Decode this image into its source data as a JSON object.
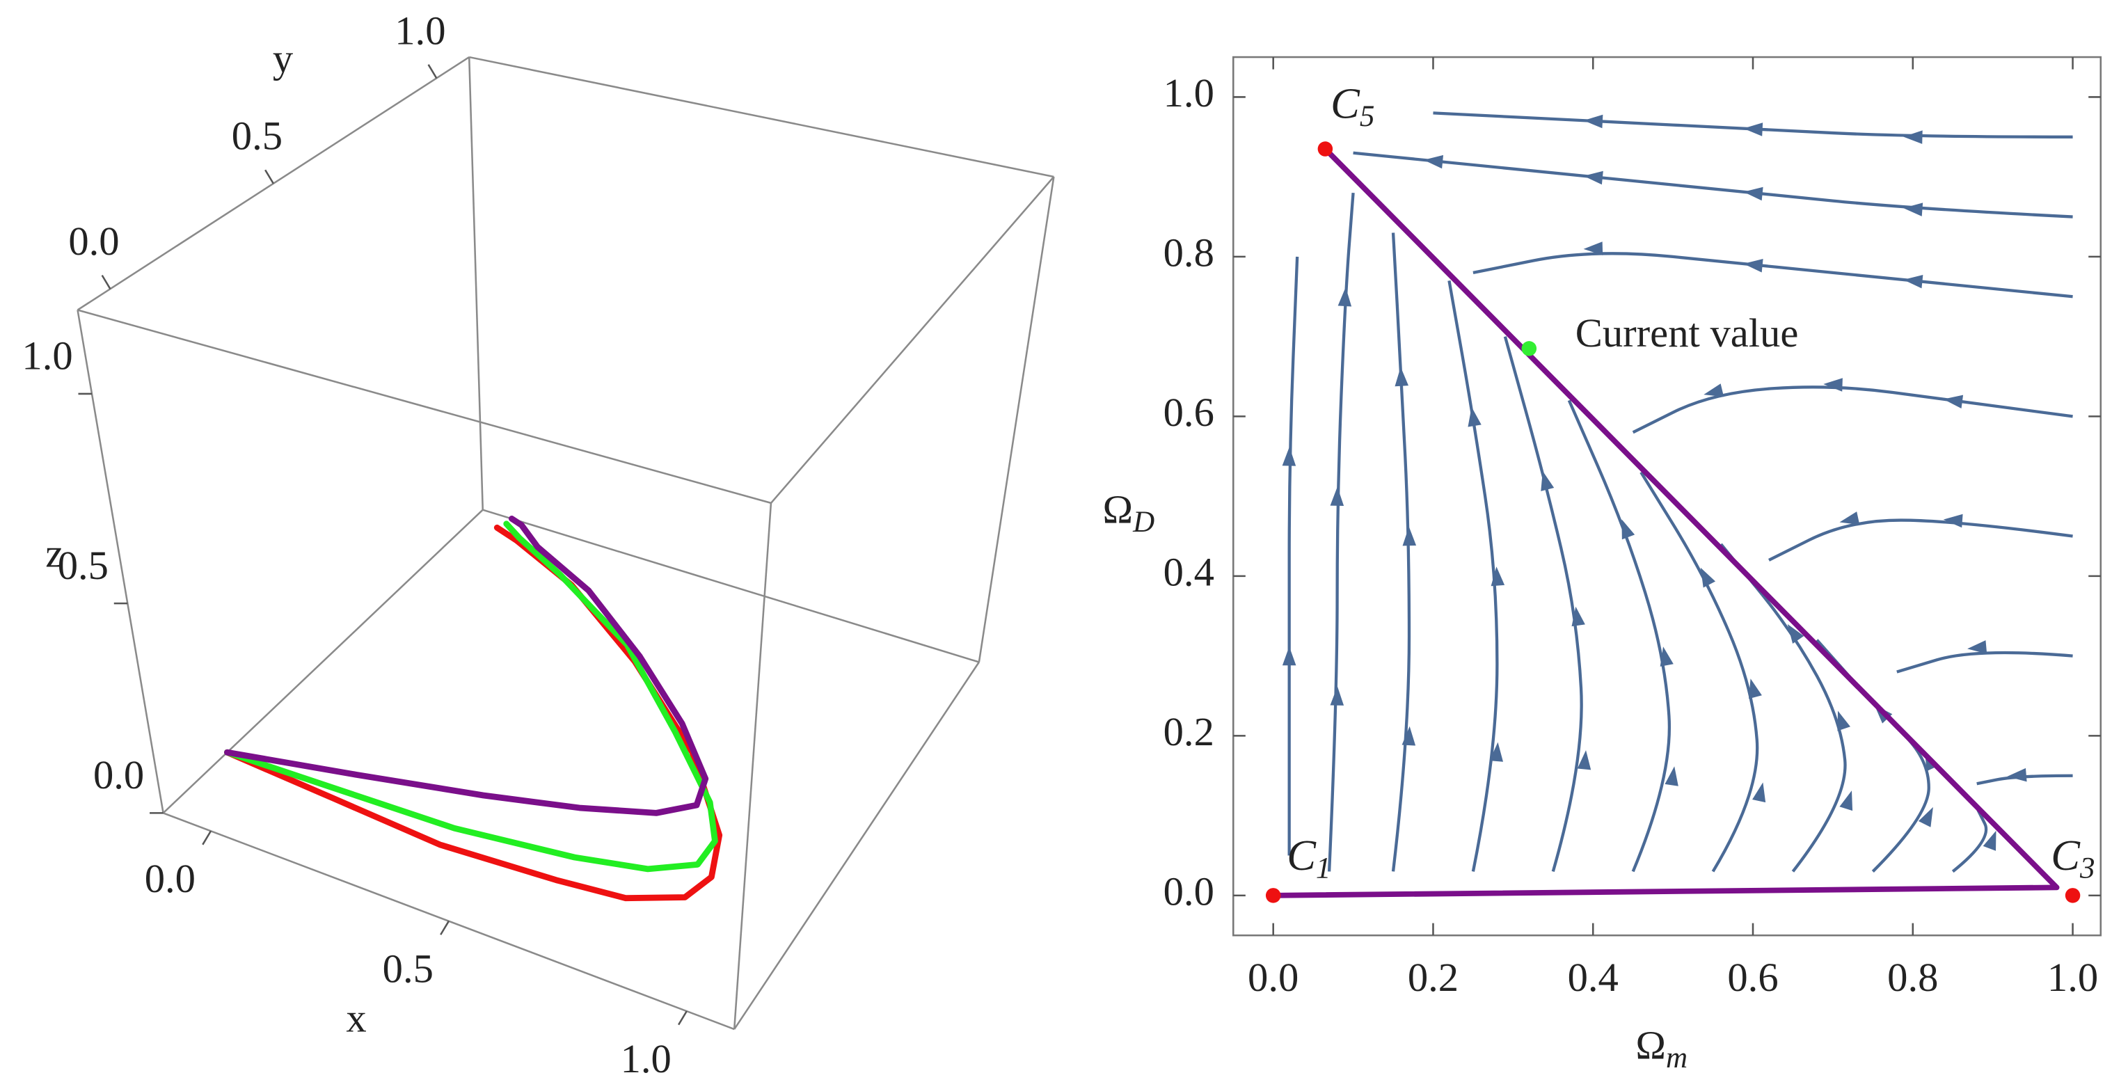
{
  "chart_data": [
    {
      "type": "line3d",
      "x_label": "x",
      "y_label": "y",
      "z_label": "z",
      "xlim": [
        -0.1,
        1.1
      ],
      "ylim": [
        -0.1,
        1.1
      ],
      "zlim": [
        0,
        1.2
      ],
      "xticks": [
        {
          "value": 0,
          "label": "0.0"
        },
        {
          "value": 0.5,
          "label": "0.5"
        },
        {
          "value": 1,
          "label": "1.0"
        }
      ],
      "yticks": [
        {
          "value": 0,
          "label": "0.0"
        },
        {
          "value": 0.5,
          "label": "0.5"
        },
        {
          "value": 1,
          "label": "1.0"
        }
      ],
      "zticks": [
        {
          "value": 0,
          "label": "0.0"
        },
        {
          "value": 0.5,
          "label": "0.5"
        },
        {
          "value": 1,
          "label": "1.0"
        }
      ],
      "series": [
        {
          "color": "#ee1111",
          "x": [
            -0.1,
            0.14,
            0.38,
            0.62,
            0.76,
            0.86,
            0.88,
            0.84,
            0.68,
            0.44,
            0.2,
            0.02,
            -0.04
          ],
          "y": [
            0.14,
            0.12,
            0.1,
            0.12,
            0.14,
            0.2,
            0.28,
            0.4,
            0.6,
            0.8,
            0.96,
            1.04,
            1.06
          ],
          "z": [
            0,
            0,
            0,
            0,
            0,
            0,
            0,
            0,
            0,
            0,
            0,
            0,
            0
          ]
        },
        {
          "color": "#22ee22",
          "x": [
            -0.1,
            0.14,
            0.38,
            0.62,
            0.76,
            0.84,
            0.84,
            0.78,
            0.62,
            0.4,
            0.16,
            0.02,
            -0.03
          ],
          "y": [
            0.14,
            0.15,
            0.16,
            0.2,
            0.24,
            0.3,
            0.38,
            0.48,
            0.64,
            0.84,
            0.98,
            1.05,
            1.08
          ],
          "z": [
            0,
            0,
            0,
            0,
            0,
            0,
            0,
            0,
            0,
            0,
            0,
            0,
            0
          ]
        },
        {
          "color": "#7a0f8a",
          "x": [
            -0.1,
            0.14,
            0.38,
            0.56,
            0.7,
            0.76,
            0.74,
            0.62,
            0.44,
            0.24,
            0.07,
            0,
            -0.03
          ],
          "y": [
            0.14,
            0.21,
            0.28,
            0.34,
            0.4,
            0.46,
            0.54,
            0.67,
            0.82,
            0.96,
            1.04,
            1.09,
            1.1
          ],
          "z": [
            0,
            0,
            0,
            0,
            0,
            0,
            0,
            0,
            0,
            0,
            0,
            0,
            0
          ]
        }
      ]
    },
    {
      "type": "streamplot",
      "x_label": {
        "main": "Ω",
        "sub": "m"
      },
      "y_label": {
        "main": "Ω",
        "sub": "D"
      },
      "xlim": [
        -0.05,
        1.035
      ],
      "ylim": [
        -0.05,
        1.05
      ],
      "xticks": [
        {
          "value": 0,
          "label": "0.0"
        },
        {
          "value": 0.2,
          "label": "0.2"
        },
        {
          "value": 0.4,
          "label": "0.4"
        },
        {
          "value": 0.6,
          "label": "0.6"
        },
        {
          "value": 0.8,
          "label": "0.8"
        },
        {
          "value": 1,
          "label": "1.0"
        }
      ],
      "yticks": [
        {
          "value": 0,
          "label": "0.0"
        },
        {
          "value": 0.2,
          "label": "0.2"
        },
        {
          "value": 0.4,
          "label": "0.4"
        },
        {
          "value": 0.6,
          "label": "0.6"
        },
        {
          "value": 0.8,
          "label": "0.8"
        },
        {
          "value": 1,
          "label": "1.0"
        }
      ],
      "stream_color": "#4a6a96",
      "streamlines": [
        {
          "x": [
            0.02,
            0.02,
            0.02,
            0.03
          ],
          "y": [
            0.05,
            0.3,
            0.55,
            0.8
          ]
        },
        {
          "x": [
            0.07,
            0.08,
            0.08,
            0.09,
            0.1
          ],
          "y": [
            0.03,
            0.25,
            0.5,
            0.75,
            0.88
          ]
        },
        {
          "x": [
            0.15,
            0.17,
            0.17,
            0.16,
            0.15
          ],
          "y": [
            0.03,
            0.2,
            0.45,
            0.65,
            0.83
          ]
        },
        {
          "x": [
            0.25,
            0.28,
            0.28,
            0.25,
            0.22
          ],
          "y": [
            0.03,
            0.18,
            0.4,
            0.6,
            0.77
          ]
        },
        {
          "x": [
            0.35,
            0.39,
            0.38,
            0.34,
            0.29
          ],
          "y": [
            0.03,
            0.17,
            0.35,
            0.52,
            0.7
          ]
        },
        {
          "x": [
            0.45,
            0.5,
            0.49,
            0.44,
            0.37
          ],
          "y": [
            0.03,
            0.15,
            0.3,
            0.46,
            0.62
          ]
        },
        {
          "x": [
            0.55,
            0.61,
            0.6,
            0.54,
            0.46
          ],
          "y": [
            0.03,
            0.13,
            0.26,
            0.4,
            0.53
          ]
        },
        {
          "x": [
            0.65,
            0.72,
            0.71,
            0.65,
            0.56
          ],
          "y": [
            0.03,
            0.12,
            0.22,
            0.33,
            0.44
          ]
        },
        {
          "x": [
            0.75,
            0.82,
            0.82,
            0.76,
            0.68
          ],
          "y": [
            0.03,
            0.1,
            0.17,
            0.23,
            0.32
          ]
        },
        {
          "x": [
            0.85,
            0.9,
            0.88
          ],
          "y": [
            0.03,
            0.07,
            0.11
          ]
        },
        {
          "x": [
            1,
            0.8,
            0.6,
            0.4,
            0.2
          ],
          "y": [
            0.95,
            0.95,
            0.96,
            0.97,
            0.98
          ]
        },
        {
          "x": [
            1,
            0.8,
            0.6,
            0.4,
            0.2,
            0.1
          ],
          "y": [
            0.85,
            0.86,
            0.88,
            0.9,
            0.92,
            0.93
          ]
        },
        {
          "x": [
            1,
            0.8,
            0.6,
            0.4,
            0.25
          ],
          "y": [
            0.75,
            0.77,
            0.79,
            0.81,
            0.78
          ]
        },
        {
          "x": [
            1,
            0.85,
            0.7,
            0.55,
            0.45
          ],
          "y": [
            0.6,
            0.62,
            0.64,
            0.63,
            0.58
          ]
        },
        {
          "x": [
            1,
            0.85,
            0.72,
            0.62
          ],
          "y": [
            0.45,
            0.47,
            0.47,
            0.42
          ]
        },
        {
          "x": [
            1,
            0.88,
            0.78
          ],
          "y": [
            0.3,
            0.31,
            0.28
          ]
        },
        {
          "x": [
            1,
            0.93,
            0.88
          ],
          "y": [
            0.15,
            0.15,
            0.14
          ]
        }
      ],
      "series": [
        {
          "color": "#7a0f8a",
          "x": [
            0.065,
            0.98,
            0
          ],
          "y": [
            0.935,
            0.01,
            0
          ]
        }
      ],
      "points": [
        {
          "label": "C",
          "sub": "1",
          "x": 0,
          "y": 0,
          "color": "#ee1111"
        },
        {
          "label": "C",
          "sub": "3",
          "x": 1,
          "y": 0,
          "color": "#ee1111"
        },
        {
          "label": "C",
          "sub": "5",
          "x": 0.065,
          "y": 0.935,
          "color": "#ee1111"
        },
        {
          "label": "Current value",
          "x": 0.32,
          "y": 0.685,
          "color": "#33ee33"
        }
      ]
    }
  ]
}
